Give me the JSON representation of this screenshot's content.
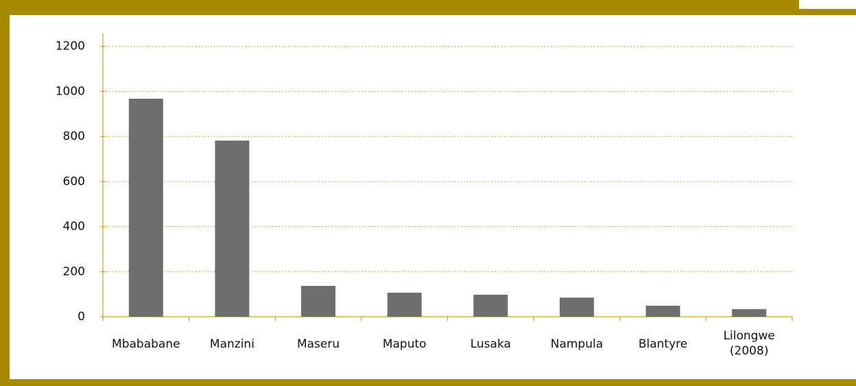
{
  "chart_data": {
    "type": "bar",
    "categories": [
      "Mbababane",
      "Manzini",
      "Maseru",
      "Maputo",
      "Lusaka",
      "Nampula",
      "Blantyre",
      "Lilongwe (2008)"
    ],
    "values": [
      968,
      782,
      137,
      107,
      98,
      85,
      49,
      34
    ],
    "color": "#6d6e70",
    "ylim": [
      0,
      1260
    ],
    "yticks": [
      0,
      200,
      400,
      600,
      800,
      1000,
      1200
    ],
    "grid": true
  }
}
